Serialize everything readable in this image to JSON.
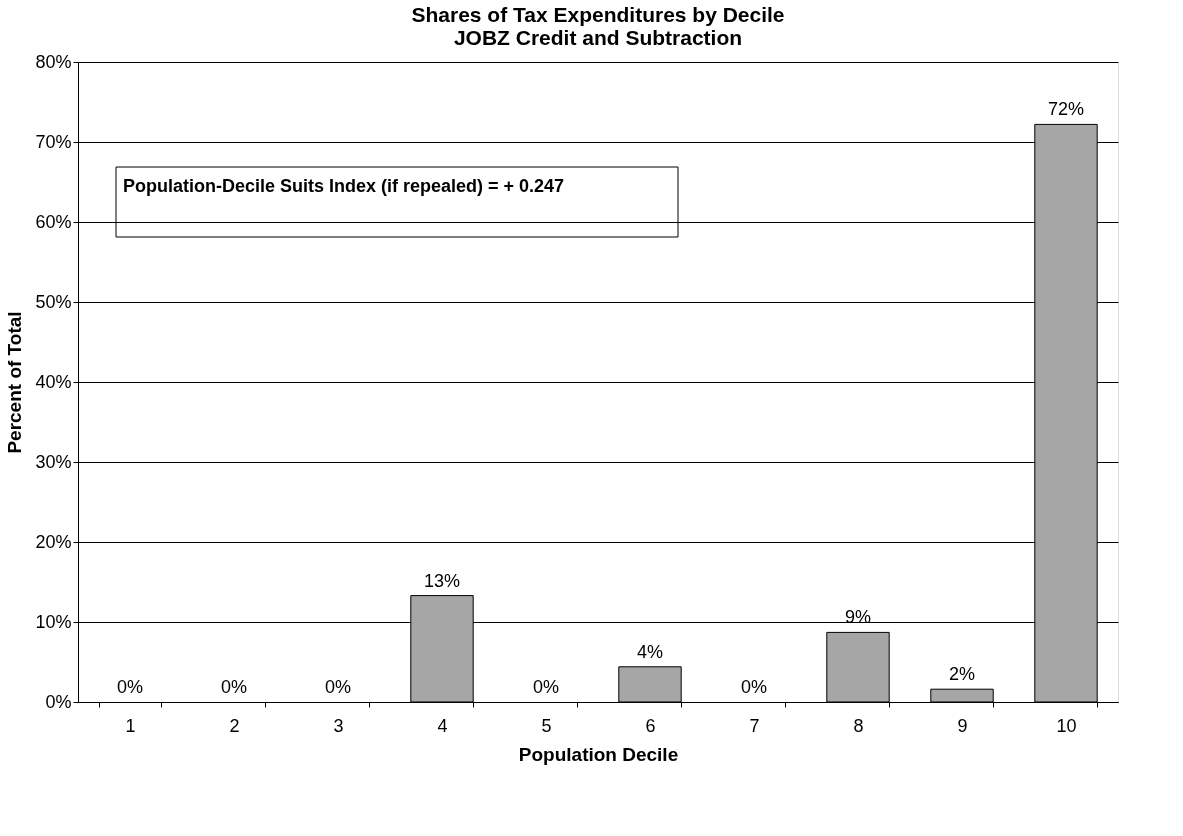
{
  "chart_data": {
    "type": "bar",
    "title": [
      "Shares of Tax Expenditures by Decile",
      "JOBZ Credit and Subtraction"
    ],
    "xlabel": "Population Decile",
    "ylabel": "Percent of Total",
    "categories": [
      "1",
      "2",
      "3",
      "4",
      "5",
      "6",
      "7",
      "8",
      "9",
      "10"
    ],
    "values": [
      0,
      0,
      0,
      13.3,
      0,
      4.4,
      0,
      8.7,
      1.6,
      72.2
    ],
    "value_labels": [
      "0%",
      "0%",
      "0%",
      "13%",
      "0%",
      "4%",
      "0%",
      "9%",
      "2%",
      "72%"
    ],
    "color": "#a6a6a6",
    "ylim": [
      0,
      80
    ],
    "yticks": [
      {
        "value": 0,
        "label": "0%"
      },
      {
        "value": 10,
        "label": "10%"
      },
      {
        "value": 20,
        "label": "20%"
      },
      {
        "value": 30,
        "label": "30%"
      },
      {
        "value": 40,
        "label": "40%"
      },
      {
        "value": 50,
        "label": "50%"
      },
      {
        "value": 60,
        "label": "60%"
      },
      {
        "value": 70,
        "label": "70%"
      },
      {
        "value": 80,
        "label": "80%"
      }
    ],
    "grid": "y",
    "annotations": [
      "Population-Decile Suits Index (if repealed) = + 0.247"
    ]
  }
}
